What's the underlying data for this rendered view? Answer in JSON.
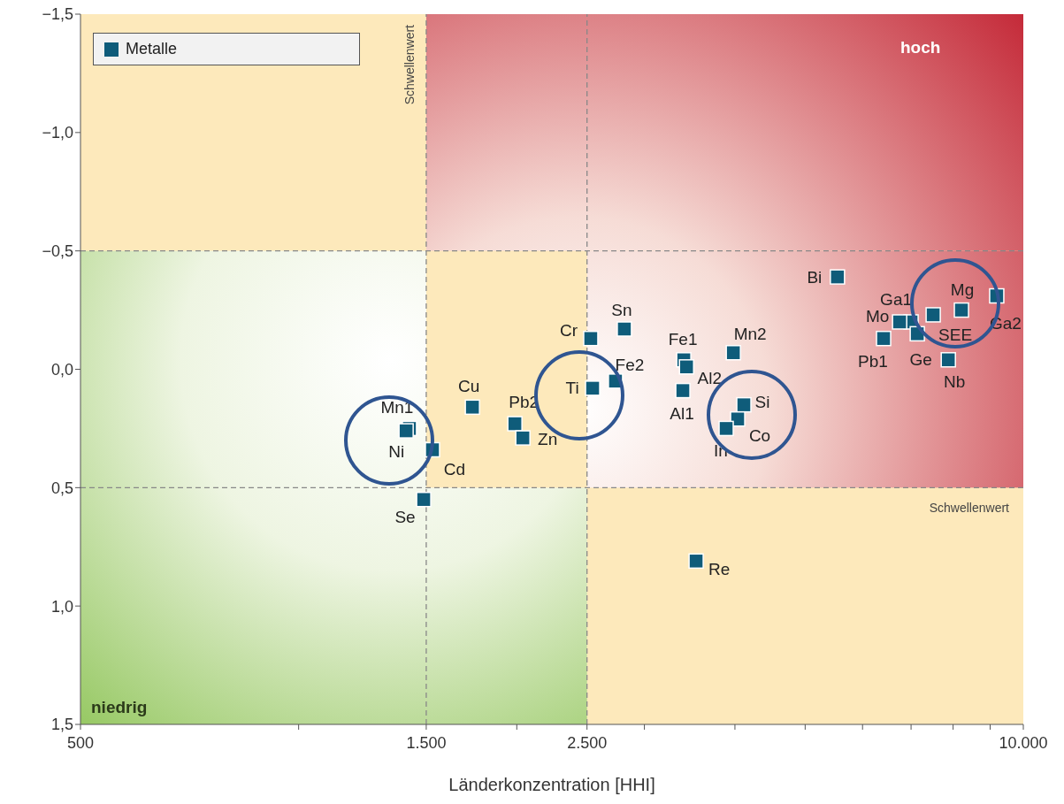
{
  "chart_data": {
    "type": "scatter",
    "xlabel": "Länderkonzentration [HHI]",
    "log": "x",
    "grid": false,
    "legend": "top left",
    "marker": "square",
    "xlim": [
      500,
      10000
    ],
    "ylim": [
      1.5,
      -1.5
    ],
    "xticks": [
      500,
      {
        "value": 1000,
        "label": null
      },
      {
        "value": 1500,
        "label": "1.500"
      },
      {
        "value": 2000,
        "label": null
      },
      {
        "value": 2500,
        "label": "2.500"
      },
      {
        "value": 3000,
        "label": null
      },
      {
        "value": 4000,
        "label": null
      },
      {
        "value": 5000,
        "label": null
      },
      {
        "value": 6000,
        "label": null
      },
      {
        "value": 7000,
        "label": null
      },
      {
        "value": 8000,
        "label": null
      },
      {
        "value": 9000,
        "label": null
      },
      {
        "value": 10000,
        "label": "10.000"
      }
    ],
    "yticks": [
      {
        "value": -1.5,
        "label": "−1,5"
      },
      {
        "value": -1,
        "label": "−1,0"
      },
      {
        "value": -0.5,
        "label": "−0,5"
      },
      {
        "value": 0,
        "label": "0,0"
      },
      {
        "value": 0.5,
        "label": "0,5"
      },
      {
        "value": 1,
        "label": "1,0"
      },
      {
        "value": 1.5,
        "label": "1,5"
      }
    ],
    "series": [
      {
        "name": "Metalle",
        "color": "#0f5c7a",
        "x": [
          5540,
          8215,
          9190,
          7000,
          6750,
          7510,
          6415,
          7140,
          7880,
          2815,
          2530,
          3400,
          3430,
          3980,
          2737,
          2545,
          3390,
          4115,
          4035,
          3890,
          1737,
          1988,
          2039,
          1422,
          1407,
          1530,
          1488,
          3536
        ],
        "values": [
          -0.39,
          -0.25,
          -0.31,
          -0.2,
          -0.2,
          -0.23,
          -0.13,
          -0.15,
          -0.04,
          -0.17,
          -0.13,
          -0.04,
          -0.01,
          -0.07,
          0.05,
          0.08,
          0.09,
          0.15,
          0.21,
          0.25,
          0.16,
          0.23,
          0.29,
          0.25,
          0.26,
          0.34,
          0.55,
          0.81
        ]
      }
    ],
    "ref_lines": [
      {
        "axis": "x",
        "value": 1500,
        "label": "Schwellenwert",
        "color": "#888888",
        "line_style": "dashed"
      },
      {
        "axis": "x",
        "value": 2500,
        "label": null,
        "color": "#888888",
        "line_style": "dashed"
      },
      {
        "axis": "y",
        "value": -0.5,
        "label": null,
        "color": "#888888",
        "line_style": "dashed"
      },
      {
        "axis": "y",
        "value": 0.5,
        "label": "Schwellenwert",
        "color": "#888888",
        "line_style": "dashed"
      }
    ],
    "annotations": [
      "hoch",
      "niedrig",
      {
        "text": "Bi",
        "x": 5540,
        "y": -0.39
      },
      {
        "text": "Mg",
        "x": 8215,
        "y": -0.25
      },
      {
        "text": "Ga2",
        "x": 9190,
        "y": -0.31
      },
      {
        "text": "Ga1",
        "x": 7000,
        "y": -0.2
      },
      {
        "text": "Mo",
        "x": 6750,
        "y": -0.2
      },
      {
        "text": "SEE",
        "x": 7510,
        "y": -0.23
      },
      {
        "text": "Pb1",
        "x": 6415,
        "y": -0.13
      },
      {
        "text": "Ge",
        "x": 7140,
        "y": -0.15
      },
      {
        "text": "Nb",
        "x": 7880,
        "y": -0.04
      },
      {
        "text": "Sn",
        "x": 2815,
        "y": -0.17
      },
      {
        "text": "Cr",
        "x": 2530,
        "y": -0.13
      },
      {
        "text": "Fe1",
        "x": 3400,
        "y": -0.04
      },
      {
        "text": "Al2",
        "x": 3430,
        "y": -0.01
      },
      {
        "text": "Mn2",
        "x": 3980,
        "y": -0.07
      },
      {
        "text": "Fe2",
        "x": 2737,
        "y": 0.05
      },
      {
        "text": "Ti",
        "x": 2545,
        "y": 0.08
      },
      {
        "text": "Al1",
        "x": 3390,
        "y": 0.09
      },
      {
        "text": "Si",
        "x": 4115,
        "y": 0.15
      },
      {
        "text": "Co",
        "x": 4035,
        "y": 0.21
      },
      {
        "text": "In",
        "x": 3890,
        "y": 0.25
      },
      {
        "text": "Cu",
        "x": 1737,
        "y": 0.16
      },
      {
        "text": "Pb2",
        "x": 1988,
        "y": 0.23
      },
      {
        "text": "Zn",
        "x": 2039,
        "y": 0.29
      },
      {
        "text": "Mn1",
        "x": 1422,
        "y": 0.25
      },
      {
        "text": "Ni",
        "x": 1407,
        "y": 0.26
      },
      {
        "text": "Cd",
        "x": 1530,
        "y": 0.34
      },
      {
        "text": "Se",
        "x": 1488,
        "y": 0.55
      },
      {
        "text": "Re",
        "x": 3536,
        "y": 0.81
      }
    ]
  }
}
